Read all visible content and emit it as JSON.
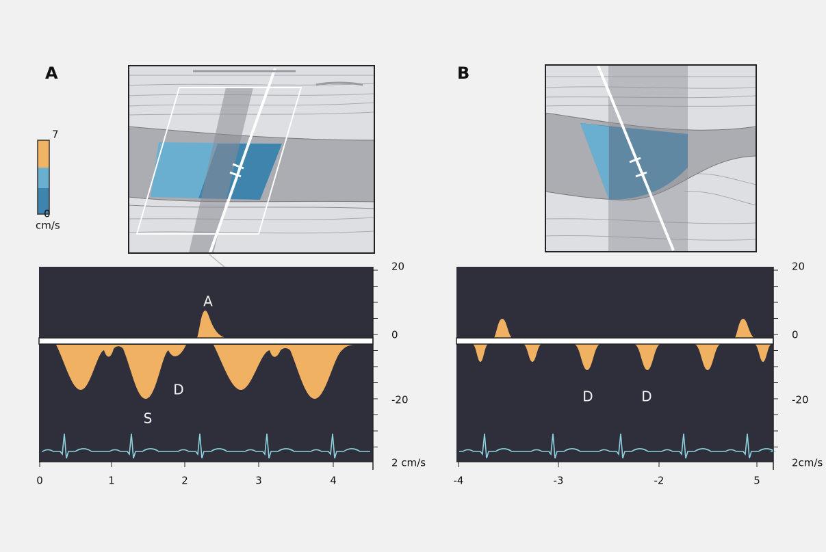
{
  "panels": [
    {
      "label": "A",
      "spectrum": {
        "annotations": [
          "A",
          "D",
          "S"
        ],
        "y_ticks": [
          "20",
          "0",
          "-20"
        ],
        "scale_label": "2 cm/s",
        "x_ticks": [
          "0",
          "1",
          "2",
          "3",
          "4"
        ]
      }
    },
    {
      "label": "B",
      "spectrum": {
        "annotations": [
          "D",
          "D"
        ],
        "y_ticks": [
          "20",
          "0",
          "-20"
        ],
        "scale_label": "2cm/s",
        "x_ticks": [
          "-4",
          "-3",
          "-2",
          "5"
        ]
      }
    }
  ],
  "color_bar": {
    "max": "7",
    "min": "0",
    "unit": "cm/s"
  }
}
